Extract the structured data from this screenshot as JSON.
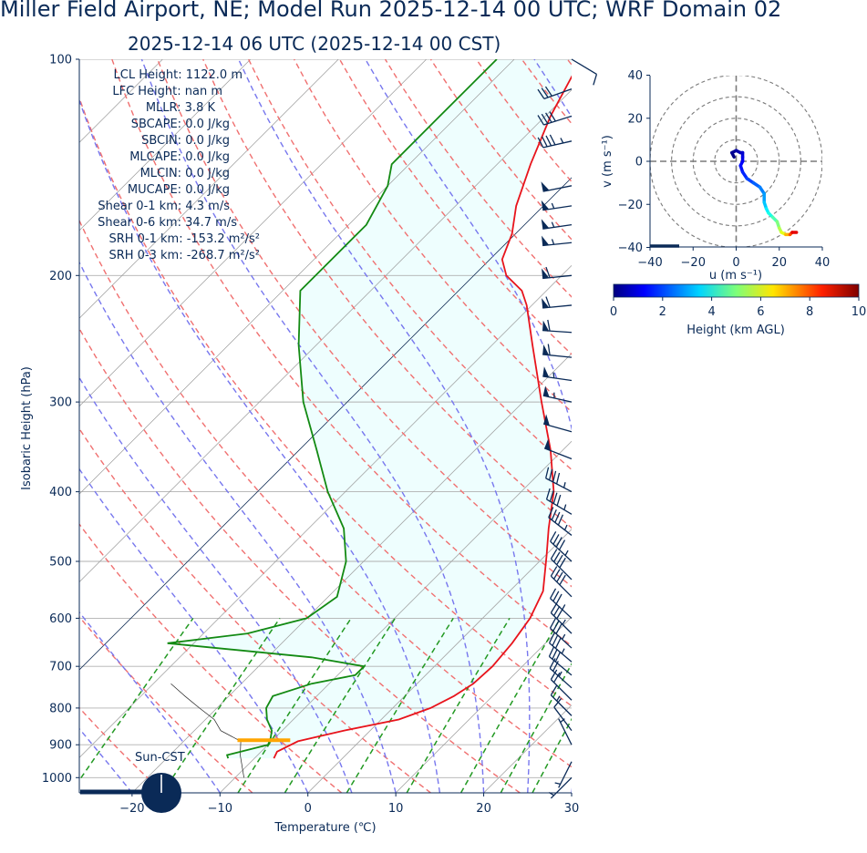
{
  "header": {
    "title": "Miller Field Airport, NE; Model Run 2025-12-14 00 UTC; WRF Domain 02",
    "subtitle": "2025-12-14 06 UTC  (2025-12-14 00 CST)"
  },
  "indices": [
    "LCL Height: 1122.0 m",
    "LFC Height: nan m",
    "MLLR: 3.8 K",
    "SBCAPE: 0.0 J/kg",
    "SBCIN: 0.0 J/kg",
    "MLCAPE: 0.0 J/kg",
    "MLCIN: 0.0 J/kg",
    "MUCAPE: 0.0 J/kg",
    "Shear 0-1 km: 4.3 m/s",
    "Shear 0-6 km: 34.7 m/s",
    "SRH 0-1 km: -153.2 m²/s²",
    "SRH 0-3 km: -268.7 m²/s²"
  ],
  "sun_label": "Sun-CST",
  "colors": {
    "text": "#0a2a57",
    "temperature": "#e8141c",
    "dewpoint": "#138a13",
    "dry_adiabat": "#f07070",
    "moist_adiabat": "#7777ee",
    "mixing_ratio": "#229922",
    "isotherm": "#909090",
    "shading": "#eefefe",
    "parcel": "#ffa500"
  },
  "chart_data": [
    {
      "type": "line",
      "name": "skew-t",
      "xlabel": "Temperature (℃)",
      "ylabel": "Isobaric Height (hPa)",
      "xlim": [
        -26,
        30
      ],
      "ylim": [
        1050,
        100
      ],
      "skew_deg_per_log_p": 45,
      "x_ticks": [
        -20,
        -10,
        0,
        10,
        20,
        30
      ],
      "x_tick_labels": [
        "−20",
        "−10",
        "0",
        "10",
        "20",
        "30"
      ],
      "y_ticks": [
        100,
        200,
        300,
        400,
        500,
        600,
        700,
        800,
        900,
        1000
      ],
      "y_tick_labels": [
        "100",
        "200",
        "300",
        "400",
        "500",
        "600",
        "700",
        "800",
        "900",
        "1000"
      ],
      "series": [
        {
          "kind": "temperature",
          "points": [
            [
              940,
              -7.8
            ],
            [
              920,
              -8.2
            ],
            [
              890,
              -7
            ],
            [
              860,
              -3
            ],
            [
              830,
              2
            ],
            [
              800,
              4.3
            ],
            [
              770,
              5.6
            ],
            [
              740,
              6.4
            ],
            [
              700,
              6.6
            ],
            [
              650,
              6.2
            ],
            [
              600,
              5.4
            ],
            [
              550,
              3.8
            ],
            [
              520,
              2
            ],
            [
              490,
              0.1
            ],
            [
              450,
              -2.7
            ],
            [
              400,
              -6.3
            ],
            [
              350,
              -11.4
            ],
            [
              300,
              -17.9
            ],
            [
              250,
              -25.4
            ],
            [
              220,
              -30.6
            ],
            [
              210,
              -32.8
            ],
            [
              200,
              -36.3
            ],
            [
              190,
              -38.6
            ],
            [
              175,
              -40.4
            ],
            [
              160,
              -43.1
            ],
            [
              140,
              -46.2
            ],
            [
              120,
              -49.4
            ],
            [
              100,
              -52.4
            ]
          ]
        },
        {
          "kind": "dewpoint",
          "points": [
            [
              940,
              -13
            ],
            [
              930,
              -13.5
            ],
            [
              900,
              -10
            ],
            [
              880,
              -10.5
            ],
            [
              860,
              -11.2
            ],
            [
              830,
              -13
            ],
            [
              800,
              -14.4
            ],
            [
              770,
              -15
            ],
            [
              740,
              -12
            ],
            [
              720,
              -8
            ],
            [
              700,
              -8
            ],
            [
              680,
              -15
            ],
            [
              650,
              -33
            ],
            [
              630,
              -25
            ],
            [
              600,
              -20
            ],
            [
              560,
              -19
            ],
            [
              500,
              -22
            ],
            [
              450,
              -26
            ],
            [
              400,
              -32
            ],
            [
              350,
              -38
            ],
            [
              300,
              -45
            ],
            [
              250,
              -52
            ],
            [
              210,
              -58
            ],
            [
              190,
              -58
            ],
            [
              170,
              -58
            ],
            [
              150,
              -60
            ],
            [
              140,
              -62
            ],
            [
              120,
              -62
            ],
            [
              100,
              -62
            ]
          ]
        },
        {
          "kind": "parcel",
          "points": [
            [
              1000,
              -9
            ],
            [
              930,
              -12
            ],
            [
              890,
              -13.5
            ],
            [
              860,
              -17
            ],
            [
              830,
              -19
            ],
            [
              800,
              -22
            ],
            [
              770,
              -25
            ],
            [
              740,
              -28
            ]
          ]
        }
      ],
      "surface_pressure": 887,
      "wind_barbs": [
        {
          "p": 100,
          "u": -5,
          "v": 3
        },
        {
          "p": 110,
          "u": 14,
          "v": 5
        },
        {
          "p": 120,
          "u": 19,
          "v": 6
        },
        {
          "p": 130,
          "u": 22,
          "v": 5
        },
        {
          "p": 150,
          "u": 25,
          "v": 5
        },
        {
          "p": 160,
          "u": 27,
          "v": 4
        },
        {
          "p": 170,
          "u": 28,
          "v": 4
        },
        {
          "p": 180,
          "u": 29,
          "v": 3
        },
        {
          "p": 200,
          "u": 30,
          "v": 3
        },
        {
          "p": 220,
          "u": 31,
          "v": 3
        },
        {
          "p": 240,
          "u": 31,
          "v": -2
        },
        {
          "p": 260,
          "u": 30,
          "v": -3
        },
        {
          "p": 280,
          "u": 28,
          "v": -4
        },
        {
          "p": 300,
          "u": 27,
          "v": -6
        },
        {
          "p": 330,
          "u": 25,
          "v": -7
        },
        {
          "p": 360,
          "u": 23,
          "v": -9
        },
        {
          "p": 400,
          "u": 21,
          "v": -11
        },
        {
          "p": 430,
          "u": 20,
          "v": -12
        },
        {
          "p": 460,
          "u": 18,
          "v": -14
        },
        {
          "p": 500,
          "u": 16,
          "v": -15
        },
        {
          "p": 530,
          "u": 15,
          "v": -15
        },
        {
          "p": 560,
          "u": 14,
          "v": -14
        },
        {
          "p": 600,
          "u": 14,
          "v": -13
        },
        {
          "p": 630,
          "u": 13,
          "v": -13
        },
        {
          "p": 660,
          "u": 13,
          "v": -12
        },
        {
          "p": 690,
          "u": 13,
          "v": -11
        },
        {
          "p": 720,
          "u": 12,
          "v": -10
        },
        {
          "p": 750,
          "u": 10,
          "v": -9
        },
        {
          "p": 780,
          "u": 8,
          "v": -8
        },
        {
          "p": 820,
          "u": 6,
          "v": -6
        },
        {
          "p": 860,
          "u": 3,
          "v": -4
        },
        {
          "p": 900,
          "u": 1,
          "v": -2
        },
        {
          "p": 950,
          "u": 1,
          "v": 2
        },
        {
          "p": 1000,
          "u": 1,
          "v": 1
        }
      ],
      "clock_time": "00 CST"
    },
    {
      "type": "line",
      "name": "hodograph",
      "xlabel": "u (m s⁻¹)",
      "ylabel": "v (m s⁻¹)",
      "xlim": [
        -40,
        40
      ],
      "ylim": [
        -40,
        40
      ],
      "rings": [
        10,
        20,
        30,
        40
      ],
      "x_ticks": [
        -40,
        -20,
        0,
        20,
        40
      ],
      "x_tick_labels": [
        "−40",
        "−20",
        "0",
        "20",
        "40"
      ],
      "y_ticks": [
        40,
        20,
        0,
        -20,
        -40
      ],
      "y_tick_labels": [
        "40",
        "20",
        "0",
        "−20",
        "−40"
      ],
      "points": [
        [
          -1,
          2,
          0.02
        ],
        [
          -2,
          4,
          0.2
        ],
        [
          0,
          5,
          0.4
        ],
        [
          2,
          4,
          0.6
        ],
        [
          3,
          4,
          0.8
        ],
        [
          3,
          2,
          1.0
        ],
        [
          3,
          0,
          1.2
        ],
        [
          2,
          -2,
          1.4
        ],
        [
          3,
          -5,
          1.6
        ],
        [
          5,
          -8,
          1.9
        ],
        [
          8,
          -10,
          2.2
        ],
        [
          11,
          -12,
          2.5
        ],
        [
          13,
          -15,
          2.8
        ],
        [
          13,
          -19,
          3.2
        ],
        [
          14,
          -22,
          3.6
        ],
        [
          15,
          -24,
          4.0
        ],
        [
          17,
          -26,
          4.5
        ],
        [
          19,
          -28,
          5.0
        ],
        [
          20,
          -31,
          5.5
        ],
        [
          21,
          -33,
          6.0
        ],
        [
          23,
          -34,
          7.0
        ],
        [
          25,
          -34,
          8.0
        ],
        [
          26,
          -33,
          9.0
        ],
        [
          28,
          -33,
          10.0
        ]
      ]
    }
  ],
  "colorbar": {
    "label": "Height (km AGL)",
    "ticks": [
      "0",
      "2",
      "4",
      "6",
      "8",
      "10"
    ]
  }
}
